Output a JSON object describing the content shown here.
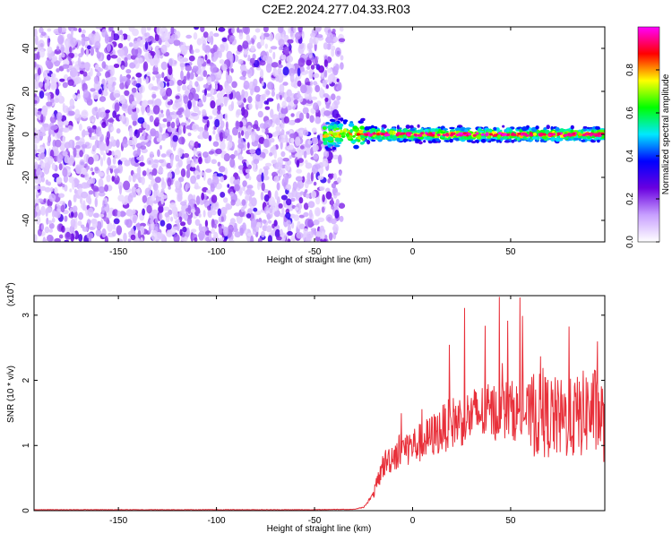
{
  "title": "C2E2.2024.277.04.33.R03",
  "chart_data": [
    {
      "type": "heatmap",
      "xlabel": "Height of straight line (km)",
      "ylabel": "Frequency (Hz)",
      "xlim": [
        -193,
        98
      ],
      "ylim": [
        -50,
        50
      ],
      "xticks": [
        -150,
        -100,
        -50,
        0,
        50
      ],
      "yticks": [
        -40,
        -20,
        0,
        20,
        40
      ],
      "colorbar": {
        "label": "Normalized spectral amplitude",
        "range": [
          0.0,
          1.0
        ],
        "ticks": [
          "0.0",
          "0.2",
          "0.4",
          "0.6",
          "0.8"
        ],
        "colors": [
          "#ffffff",
          "#c8a0ff",
          "#6a00e0",
          "#0000ff",
          "#00e8ff",
          "#00ff00",
          "#ffff00",
          "#ff0000",
          "#ff00ff"
        ]
      },
      "description_regions": [
        {
          "x_range": [
            -193,
            -36
          ],
          "freq_range": [
            -50,
            50
          ],
          "amplitude": "low (~0.1-0.3), scattered noise"
        },
        {
          "x_range": [
            -40,
            98
          ],
          "freq_range": [
            -5,
            5
          ],
          "amplitude": "high (0.3-1.0), narrow band centered at 0 Hz"
        }
      ]
    },
    {
      "type": "line",
      "xlabel": "Height of straight line (km)",
      "ylabel": "SNR (10 * v/v)",
      "y_multiplier": "(x10",
      "y_multiplier_exp": "4",
      "xlim": [
        -193,
        98
      ],
      "ylim": [
        0,
        3.3
      ],
      "xticks": [
        -150,
        -100,
        -50,
        0,
        50
      ],
      "yticks": [
        0,
        1,
        2,
        3
      ],
      "series": [
        {
          "color": "#e8303a",
          "x": [
            -193,
            -150,
            -100,
            -50,
            -30,
            -25,
            -20,
            -15,
            -10,
            -5,
            0,
            5,
            10,
            15,
            20,
            25,
            30,
            35,
            40,
            45,
            50,
            55,
            60,
            65,
            70,
            75,
            80,
            85,
            90,
            95,
            98
          ],
          "y": [
            0.01,
            0.01,
            0.01,
            0.01,
            0.02,
            0.05,
            0.25,
            0.7,
            0.85,
            0.95,
            1.0,
            1.05,
            1.15,
            1.25,
            1.35,
            1.4,
            1.45,
            1.5,
            1.5,
            1.55,
            1.55,
            1.5,
            1.5,
            1.45,
            1.45,
            1.4,
            1.4,
            1.45,
            1.55,
            1.5,
            1.3
          ]
        }
      ]
    }
  ]
}
